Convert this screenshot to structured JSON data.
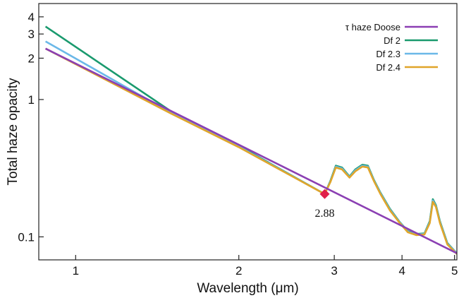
{
  "chart_data": {
    "type": "line",
    "xlabel": "Wavelength (μm)",
    "ylabel": "Total haze opacity",
    "xscale": "log",
    "yscale": "log",
    "xlim": [
      0.855,
      5.05
    ],
    "ylim": [
      0.068,
      5.0
    ],
    "xticks": [
      1,
      2,
      3,
      4,
      5
    ],
    "xtick_labels": [
      "1",
      "2",
      "3",
      "4",
      "5"
    ],
    "yticks": [
      0.1,
      1,
      2,
      3,
      4
    ],
    "ytick_labels": [
      "0.1",
      "1",
      "2",
      "3",
      "4"
    ],
    "grid": false,
    "legend_position": "top-right",
    "series": [
      {
        "name": "τ haze Doose",
        "color": "#8b3fb3",
        "x": [
          0.88,
          5.05
        ],
        "y": [
          2.35,
          0.076
        ]
      },
      {
        "name": "Df 2",
        "color": "#1a9a6e",
        "x": [
          0.88,
          1.5,
          2.0,
          2.88,
          2.95,
          3.02,
          3.1,
          3.2,
          3.28,
          3.38,
          3.46,
          3.55,
          3.65,
          3.8,
          3.95,
          4.1,
          4.25,
          4.4,
          4.5,
          4.56,
          4.62,
          4.7,
          4.85,
          5.05
        ],
        "y": [
          3.4,
          0.82,
          0.46,
          0.205,
          0.255,
          0.33,
          0.32,
          0.275,
          0.31,
          0.335,
          0.33,
          0.26,
          0.21,
          0.16,
          0.13,
          0.11,
          0.105,
          0.106,
          0.13,
          0.188,
          0.17,
          0.13,
          0.09,
          0.076
        ]
      },
      {
        "name": "Df 2.3",
        "color": "#6bb8e8",
        "x": [
          0.88,
          1.5,
          2.0,
          2.88,
          2.95,
          3.02,
          3.1,
          3.2,
          3.28,
          3.38,
          3.46,
          3.55,
          3.65,
          3.8,
          3.95,
          4.1,
          4.25,
          4.4,
          4.5,
          4.56,
          4.62,
          4.7,
          4.85,
          5.05
        ],
        "y": [
          2.65,
          0.8,
          0.455,
          0.205,
          0.252,
          0.325,
          0.315,
          0.272,
          0.305,
          0.33,
          0.325,
          0.257,
          0.208,
          0.158,
          0.129,
          0.109,
          0.104,
          0.105,
          0.128,
          0.184,
          0.167,
          0.128,
          0.089,
          0.076
        ]
      },
      {
        "name": "Df 2.4",
        "color": "#e0a52a",
        "x": [
          0.88,
          1.5,
          2.0,
          2.88,
          2.95,
          3.02,
          3.1,
          3.2,
          3.28,
          3.38,
          3.46,
          3.55,
          3.65,
          3.8,
          3.95,
          4.1,
          4.25,
          4.4,
          4.5,
          4.56,
          4.62,
          4.7,
          4.85,
          5.05
        ],
        "y": [
          2.35,
          0.79,
          0.45,
          0.205,
          0.25,
          0.32,
          0.31,
          0.27,
          0.3,
          0.325,
          0.32,
          0.255,
          0.205,
          0.156,
          0.128,
          0.108,
          0.103,
          0.104,
          0.126,
          0.18,
          0.165,
          0.126,
          0.088,
          0.075
        ]
      }
    ],
    "annotations": [
      {
        "type": "marker",
        "shape": "diamond",
        "x": 2.88,
        "y": 0.205,
        "color": "#e0204a",
        "label": "2.88"
      }
    ]
  }
}
